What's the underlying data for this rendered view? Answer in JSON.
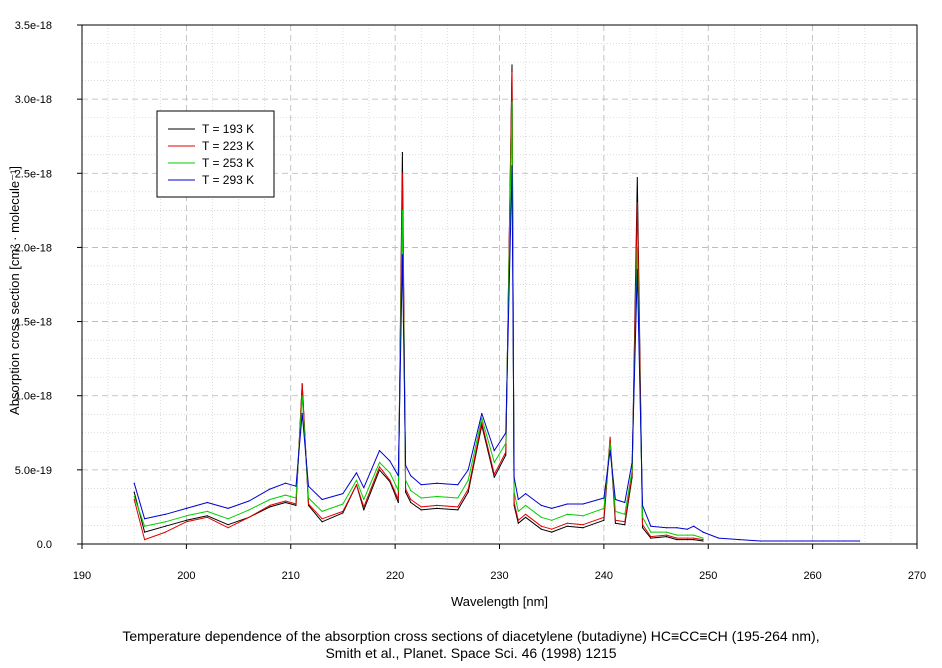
{
  "chart_data": {
    "type": "line",
    "xlabel": "Wavelength [nm]",
    "ylabel": "Absorption cross section [cm² · molecule⁻¹]",
    "xlim": [
      190,
      270
    ],
    "ylim": [
      0,
      3.5e-18
    ],
    "x_ticks": [
      190,
      200,
      210,
      220,
      230,
      240,
      250,
      260,
      270
    ],
    "x_tick_labels": [
      "190",
      "200",
      "210",
      "220",
      "230",
      "240",
      "250",
      "260",
      "270"
    ],
    "y_ticks": [
      0,
      5e-19,
      1e-18,
      1.5e-18,
      2e-18,
      2.5e-18,
      3e-18,
      3.5e-18
    ],
    "y_tick_labels": [
      "0.0",
      "5.0e-19",
      "1.0e-18",
      "1.5e-18",
      "2.0e-18",
      "2.5e-18",
      "3.0e-18",
      "3.5e-18"
    ],
    "grid": true,
    "legend_position": "upper-left",
    "series": [
      {
        "name": "T = 193 K",
        "color": "#000000",
        "x": [
          195.0,
          196.0,
          198.0,
          200.0,
          202.0,
          204.0,
          206.0,
          208.0,
          209.5,
          210.5,
          211.1,
          211.7,
          213.0,
          215.0,
          216.3,
          217.0,
          218.5,
          219.5,
          220.3,
          220.7,
          221.0,
          221.5,
          222.5,
          224.0,
          226.0,
          227.0,
          228.3,
          229.5,
          230.6,
          231.2,
          231.4,
          231.8,
          232.5,
          234.0,
          235.0,
          236.5,
          238.0,
          240.0,
          240.6,
          241.1,
          242.0,
          242.7,
          243.2,
          243.7,
          244.5,
          246.0,
          247.0,
          248.0,
          248.6,
          249.5
        ],
        "y": [
          3.5e-19,
          8e-20,
          1.2e-19,
          1.6e-19,
          1.9e-19,
          1.3e-19,
          1.8e-19,
          2.5e-19,
          2.8e-19,
          2.6e-19,
          1.08e-18,
          2.6e-19,
          1.5e-19,
          2.1e-19,
          4e-19,
          2.3e-19,
          5e-19,
          4.2e-19,
          2.8e-19,
          2.64e-18,
          3.5e-19,
          2.8e-19,
          2.3e-19,
          2.4e-19,
          2.3e-19,
          3.5e-19,
          8e-19,
          4.5e-19,
          6e-19,
          3.23e-18,
          2.6e-19,
          1.4e-19,
          1.8e-19,
          1e-19,
          8e-20,
          1.2e-19,
          1.1e-19,
          1.6e-19,
          7e-19,
          1.4e-19,
          1.3e-19,
          4.5e-19,
          2.47e-18,
          1.1e-19,
          4e-20,
          5e-20,
          3e-20,
          3e-20,
          3e-20,
          2e-20
        ]
      },
      {
        "name": "T = 223 K",
        "color": "#e00000",
        "x": [
          195.0,
          196.0,
          198.0,
          200.0,
          202.0,
          204.0,
          206.0,
          208.0,
          209.5,
          210.5,
          211.1,
          211.7,
          213.0,
          215.0,
          216.3,
          217.0,
          218.5,
          219.5,
          220.3,
          220.7,
          221.0,
          221.5,
          222.5,
          224.0,
          226.0,
          227.0,
          228.3,
          229.5,
          230.6,
          231.2,
          231.4,
          231.8,
          232.5,
          234.0,
          235.0,
          236.5,
          238.0,
          240.0,
          240.6,
          241.1,
          242.0,
          242.7,
          243.2,
          243.7,
          244.5,
          246.0,
          247.0,
          248.0,
          248.6,
          249.5
        ],
        "y": [
          3e-19,
          3e-20,
          8e-20,
          1.5e-19,
          1.8e-19,
          1.1e-19,
          1.8e-19,
          2.6e-19,
          2.9e-19,
          2.7e-19,
          1.08e-18,
          2.7e-19,
          1.7e-19,
          2.2e-19,
          4e-19,
          2.5e-19,
          5.2e-19,
          4.3e-19,
          3e-19,
          2.5e-18,
          3.7e-19,
          3e-19,
          2.5e-19,
          2.6e-19,
          2.5e-19,
          3.7e-19,
          8.2e-19,
          4.7e-19,
          6.2e-19,
          3.18e-18,
          2.8e-19,
          1.6e-19,
          2e-19,
          1.2e-19,
          1e-19,
          1.4e-19,
          1.3e-19,
          1.8e-19,
          7.2e-19,
          1.6e-19,
          1.5e-19,
          4.7e-19,
          2.3e-18,
          1.3e-19,
          5e-20,
          6e-20,
          4e-20,
          4e-20,
          4e-20,
          3e-20
        ]
      },
      {
        "name": "T = 253 K",
        "color": "#00d000",
        "x": [
          195.0,
          196.0,
          198.0,
          200.0,
          202.0,
          204.0,
          206.0,
          208.0,
          209.5,
          210.5,
          211.1,
          211.7,
          213.0,
          215.0,
          216.3,
          217.0,
          218.5,
          219.5,
          220.3,
          220.7,
          221.0,
          221.5,
          222.5,
          224.0,
          226.0,
          227.0,
          228.3,
          229.5,
          230.6,
          231.2,
          231.4,
          231.8,
          232.5,
          234.0,
          235.0,
          236.5,
          238.0,
          240.0,
          240.6,
          241.1,
          242.0,
          242.7,
          243.2,
          243.7,
          244.5,
          246.0,
          247.0,
          248.0,
          248.6,
          249.5
        ],
        "y": [
          3.2e-19,
          1.2e-19,
          1.5e-19,
          1.9e-19,
          2.2e-19,
          1.7e-19,
          2.3e-19,
          3e-19,
          3.3e-19,
          3.1e-19,
          1e-18,
          3.1e-19,
          2.2e-19,
          2.7e-19,
          4.3e-19,
          3e-19,
          5.5e-19,
          4.8e-19,
          3.6e-19,
          2.25e-18,
          4.3e-19,
          3.6e-19,
          3.1e-19,
          3.2e-19,
          3.1e-19,
          4.3e-19,
          8.5e-19,
          5.5e-19,
          6.8e-19,
          2.98e-18,
          3.5e-19,
          2.2e-19,
          2.6e-19,
          1.8e-19,
          1.6e-19,
          2e-19,
          1.9e-19,
          2.4e-19,
          6.8e-19,
          2.2e-19,
          2e-19,
          5e-19,
          2e-18,
          1.8e-19,
          8e-20,
          8e-20,
          6e-20,
          6e-20,
          6e-20,
          4e-20
        ]
      },
      {
        "name": "T = 293 K",
        "color": "#0000d0",
        "x": [
          195.0,
          196.0,
          198.0,
          200.0,
          202.0,
          204.0,
          206.0,
          208.0,
          209.5,
          210.5,
          211.1,
          211.7,
          213.0,
          215.0,
          216.3,
          217.0,
          218.5,
          219.5,
          220.3,
          220.7,
          221.0,
          221.5,
          222.5,
          224.0,
          226.0,
          227.0,
          228.3,
          229.5,
          230.6,
          231.2,
          231.4,
          231.8,
          232.5,
          234.0,
          235.0,
          236.5,
          238.0,
          240.0,
          240.6,
          241.1,
          242.0,
          242.7,
          243.2,
          243.7,
          244.5,
          246.0,
          247.0,
          248.0,
          248.6,
          249.5,
          251.0,
          253.0,
          255.0,
          257.0,
          259.0,
          261.0,
          263.0,
          264.5
        ],
        "y": [
          4.1e-19,
          1.7e-19,
          2e-19,
          2.4e-19,
          2.8e-19,
          2.4e-19,
          2.9e-19,
          3.7e-19,
          4.1e-19,
          3.9e-19,
          8.8e-19,
          3.9e-19,
          3e-19,
          3.4e-19,
          4.8e-19,
          3.8e-19,
          6.3e-19,
          5.6e-19,
          4.6e-19,
          1.95e-18,
          5.3e-19,
          4.6e-19,
          4e-19,
          4.1e-19,
          4e-19,
          5e-19,
          8.8e-19,
          6.3e-19,
          7.5e-19,
          2.55e-18,
          4.5e-19,
          3e-19,
          3.4e-19,
          2.6e-19,
          2.4e-19,
          2.7e-19,
          2.7e-19,
          3.1e-19,
          6.3e-19,
          3e-19,
          2.8e-19,
          5.5e-19,
          1.85e-18,
          2.6e-19,
          1.2e-19,
          1.1e-19,
          1.1e-19,
          1e-19,
          1.2e-19,
          8e-20,
          4e-20,
          3e-20,
          2e-20,
          2e-20,
          2e-20,
          2e-20,
          2e-20,
          2e-20
        ]
      }
    ],
    "caption_lines": [
      "Temperature dependence of the absorption cross sections of diacetylene (butadiyne) HC≡CC≡CH (195-264 nm),",
      "Smith et al., Planet. Space Sci. 46 (1998) 1215"
    ]
  }
}
